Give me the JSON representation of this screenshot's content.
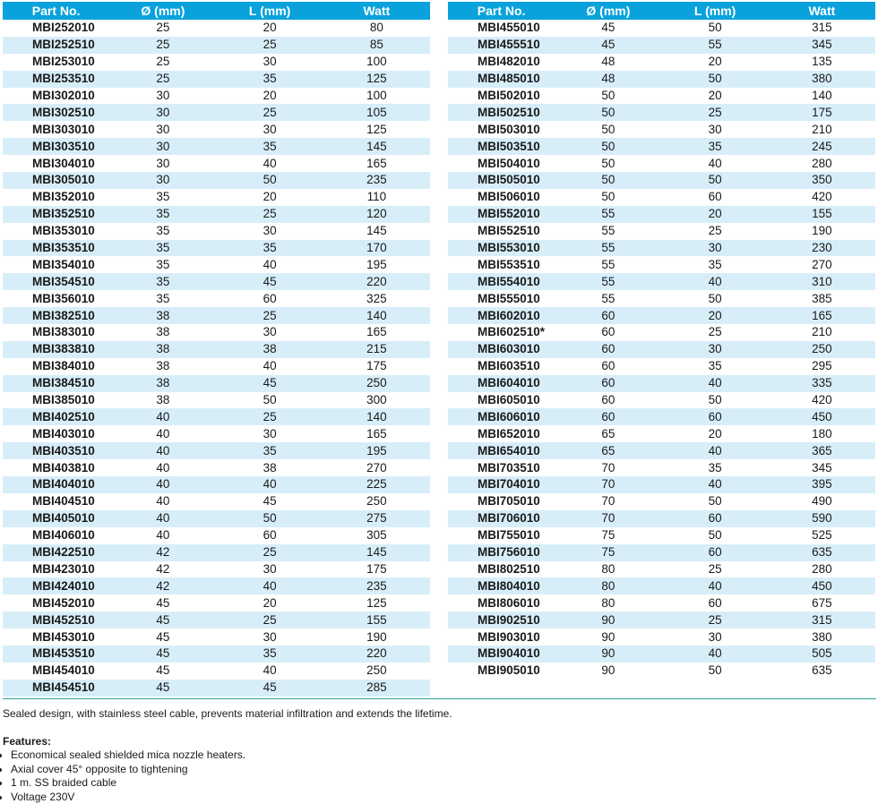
{
  "tables": [
    {
      "header": [
        "Part No.",
        "Ø (mm)",
        "L (mm)",
        "Watt"
      ],
      "rows": [
        [
          "MBI252010",
          25,
          20,
          80
        ],
        [
          "MBI252510",
          25,
          25,
          85
        ],
        [
          "MBI253010",
          25,
          30,
          100
        ],
        [
          "MBI253510",
          25,
          35,
          125
        ],
        [
          "MBI302010",
          30,
          20,
          100
        ],
        [
          "MBI302510",
          30,
          25,
          105
        ],
        [
          "MBI303010",
          30,
          30,
          125
        ],
        [
          "MBI303510",
          30,
          35,
          145
        ],
        [
          "MBI304010",
          30,
          40,
          165
        ],
        [
          "MBI305010",
          30,
          50,
          235
        ],
        [
          "MBI352010",
          35,
          20,
          110
        ],
        [
          "MBI352510",
          35,
          25,
          120
        ],
        [
          "MBI353010",
          35,
          30,
          145
        ],
        [
          "MBI353510",
          35,
          35,
          170
        ],
        [
          "MBI354010",
          35,
          40,
          195
        ],
        [
          "MBI354510",
          35,
          45,
          220
        ],
        [
          "MBI356010",
          35,
          60,
          325
        ],
        [
          "MBI382510",
          38,
          25,
          140
        ],
        [
          "MBI383010",
          38,
          30,
          165
        ],
        [
          "MBI383810",
          38,
          38,
          215
        ],
        [
          "MBI384010",
          38,
          40,
          175
        ],
        [
          "MBI384510",
          38,
          45,
          250
        ],
        [
          "MBI385010",
          38,
          50,
          300
        ],
        [
          "MBI402510",
          40,
          25,
          140
        ],
        [
          "MBI403010",
          40,
          30,
          165
        ],
        [
          "MBI403510",
          40,
          35,
          195
        ],
        [
          "MBI403810",
          40,
          38,
          270
        ],
        [
          "MBI404010",
          40,
          40,
          225
        ],
        [
          "MBI404510",
          40,
          45,
          250
        ],
        [
          "MBI405010",
          40,
          50,
          275
        ],
        [
          "MBI406010",
          40,
          60,
          305
        ],
        [
          "MBI422510",
          42,
          25,
          145
        ],
        [
          "MBI423010",
          42,
          30,
          175
        ],
        [
          "MBI424010",
          42,
          40,
          235
        ],
        [
          "MBI452010",
          45,
          20,
          125
        ],
        [
          "MBI452510",
          45,
          25,
          155
        ],
        [
          "MBI453010",
          45,
          30,
          190
        ],
        [
          "MBI453510",
          45,
          35,
          220
        ],
        [
          "MBI454010",
          45,
          40,
          250
        ],
        [
          "MBI454510",
          45,
          45,
          285
        ]
      ]
    },
    {
      "header": [
        "Part No.",
        "Ø (mm)",
        "L (mm)",
        "Watt"
      ],
      "rows": [
        [
          "MBI455010",
          45,
          50,
          315
        ],
        [
          "MBI455510",
          45,
          55,
          345
        ],
        [
          "MBI482010",
          48,
          20,
          135
        ],
        [
          "MBI485010",
          48,
          50,
          380
        ],
        [
          "MBI502010",
          50,
          20,
          140
        ],
        [
          "MBI502510",
          50,
          25,
          175
        ],
        [
          "MBI503010",
          50,
          30,
          210
        ],
        [
          "MBI503510",
          50,
          35,
          245
        ],
        [
          "MBI504010",
          50,
          40,
          280
        ],
        [
          "MBI505010",
          50,
          50,
          350
        ],
        [
          "MBI506010",
          50,
          60,
          420
        ],
        [
          "MBI552010",
          55,
          20,
          155
        ],
        [
          "MBI552510",
          55,
          25,
          190
        ],
        [
          "MBI553010",
          55,
          30,
          230
        ],
        [
          "MBI553510",
          55,
          35,
          270
        ],
        [
          "MBI554010",
          55,
          40,
          310
        ],
        [
          "MBI555010",
          55,
          50,
          385
        ],
        [
          "MBI602010",
          60,
          20,
          165
        ],
        [
          "MBI602510*",
          60,
          25,
          210
        ],
        [
          "MBI603010",
          60,
          30,
          250
        ],
        [
          "MBI603510",
          60,
          35,
          295
        ],
        [
          "MBI604010",
          60,
          40,
          335
        ],
        [
          "MBI605010",
          60,
          50,
          420
        ],
        [
          "MBI606010",
          60,
          60,
          450
        ],
        [
          "MBI652010",
          65,
          20,
          180
        ],
        [
          "MBI654010",
          65,
          40,
          365
        ],
        [
          "MBI703510",
          70,
          35,
          345
        ],
        [
          "MBI704010",
          70,
          40,
          395
        ],
        [
          "MBI705010",
          70,
          50,
          490
        ],
        [
          "MBI706010",
          70,
          60,
          590
        ],
        [
          "MBI755010",
          75,
          50,
          525
        ],
        [
          "MBI756010",
          75,
          60,
          635
        ],
        [
          "MBI802510",
          80,
          25,
          280
        ],
        [
          "MBI804010",
          80,
          40,
          450
        ],
        [
          "MBI806010",
          80,
          60,
          675
        ],
        [
          "MBI902510",
          90,
          25,
          315
        ],
        [
          "MBI903010",
          90,
          30,
          380
        ],
        [
          "MBI904010",
          90,
          40,
          505
        ],
        [
          "MBI905010",
          90,
          50,
          635
        ]
      ]
    }
  ],
  "description": "Sealed design, with stainless steel cable, prevents material infiltration and extends the lifetime.",
  "features": {
    "title": "Features:",
    "items": [
      "Economical sealed shielded mica nozzle heaters.",
      "Axial cover 45° opposite to tightening",
      "1 m. SS braided cable",
      "Voltage 230V"
    ]
  }
}
